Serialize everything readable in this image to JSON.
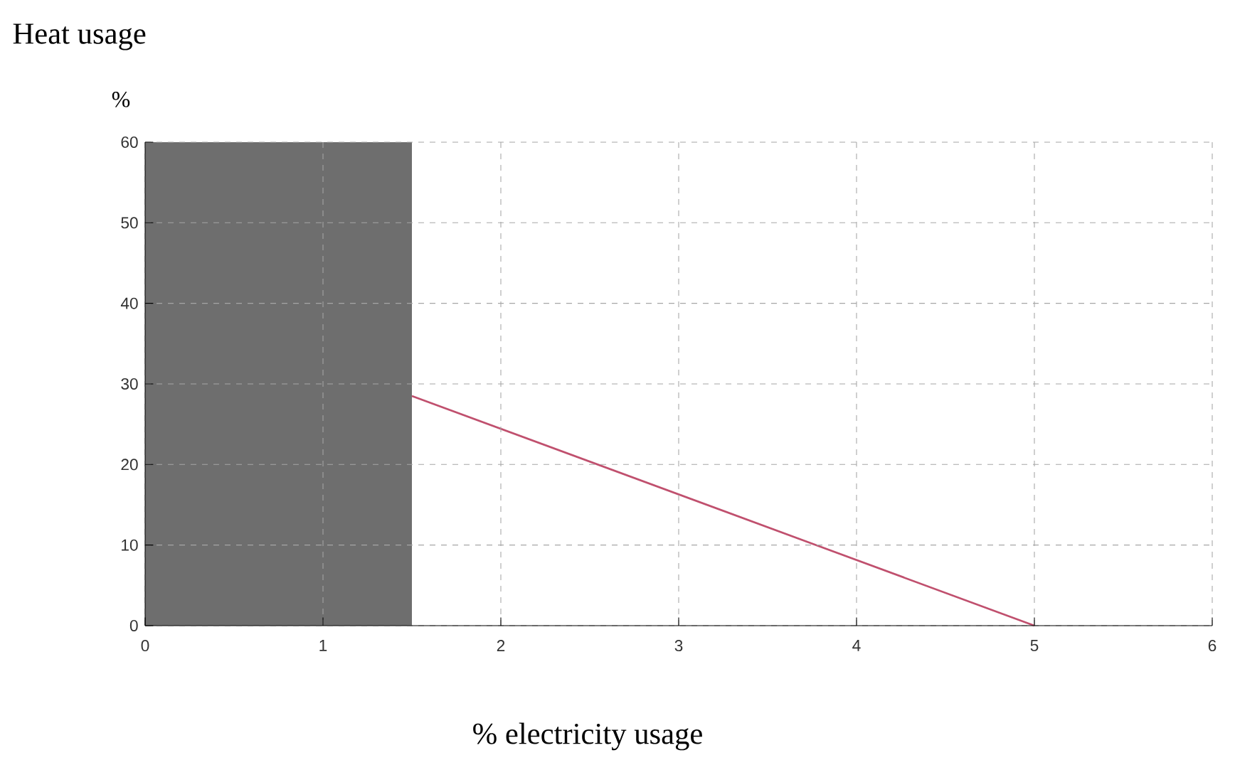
{
  "chart_data": {
    "type": "line",
    "title": "Heat usage",
    "ylabel": "%",
    "xlabel": "% electricity usage",
    "x": [
      1.5,
      5
    ],
    "series": [
      {
        "color": "#c0506e",
        "values": [
          28.5,
          0
        ]
      }
    ],
    "xlim": [
      0,
      6
    ],
    "ylim": [
      0,
      60
    ],
    "xticks": [
      0,
      1,
      2,
      3,
      4,
      5,
      6
    ],
    "yticks": [
      0,
      10,
      20,
      30,
      40,
      50,
      60
    ],
    "bands": [
      {
        "axis": "x",
        "from": 0,
        "to": 1.5,
        "color": "#6e6e6e"
      }
    ],
    "grid": true,
    "marker": "none",
    "line_style": "solid"
  }
}
